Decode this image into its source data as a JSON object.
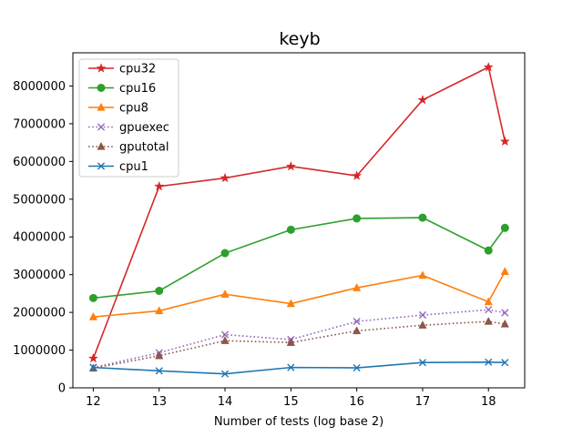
{
  "chart_data": {
    "type": "line",
    "title": "keyb",
    "xlabel": "Number of tests (log base 2)",
    "ylabel": "",
    "xlim": [
      11.69,
      18.55
    ],
    "ylim": [
      0,
      8880000
    ],
    "xticks": [
      12,
      13,
      14,
      15,
      16,
      17,
      18
    ],
    "yticks": [
      0,
      1000000,
      2000000,
      3000000,
      4000000,
      5000000,
      6000000,
      7000000,
      8000000
    ],
    "x": [
      12,
      13,
      14,
      15,
      16,
      17,
      18,
      18.25
    ],
    "grid": false,
    "legend_position": "top-left",
    "series": [
      {
        "name": "cpu32",
        "color": "#d62728",
        "marker": "star",
        "linestyle": "solid",
        "values": [
          780000,
          5340000,
          5560000,
          5870000,
          5620000,
          7630000,
          8500000,
          6530000
        ]
      },
      {
        "name": "cpu16",
        "color": "#2ca02c",
        "marker": "circle",
        "linestyle": "solid",
        "values": [
          2380000,
          2570000,
          3570000,
          4190000,
          4490000,
          4510000,
          3640000,
          4240000
        ]
      },
      {
        "name": "cpu8",
        "color": "#ff7f0e",
        "marker": "triangle",
        "linestyle": "solid",
        "values": [
          1880000,
          2040000,
          2480000,
          2230000,
          2650000,
          2980000,
          2280000,
          3080000
        ]
      },
      {
        "name": "gpuexec",
        "color": "#9467bd",
        "marker": "x",
        "linestyle": "dotted",
        "values": [
          540000,
          930000,
          1410000,
          1280000,
          1760000,
          1930000,
          2070000,
          1990000
        ]
      },
      {
        "name": "gputotal",
        "color": "#8c564b",
        "marker": "triangle",
        "linestyle": "dotted",
        "values": [
          520000,
          850000,
          1250000,
          1200000,
          1510000,
          1660000,
          1760000,
          1690000
        ]
      },
      {
        "name": "cpu1",
        "color": "#1f77b4",
        "marker": "x",
        "linestyle": "solid",
        "values": [
          540000,
          450000,
          370000,
          540000,
          530000,
          670000,
          680000,
          670000
        ]
      }
    ]
  }
}
